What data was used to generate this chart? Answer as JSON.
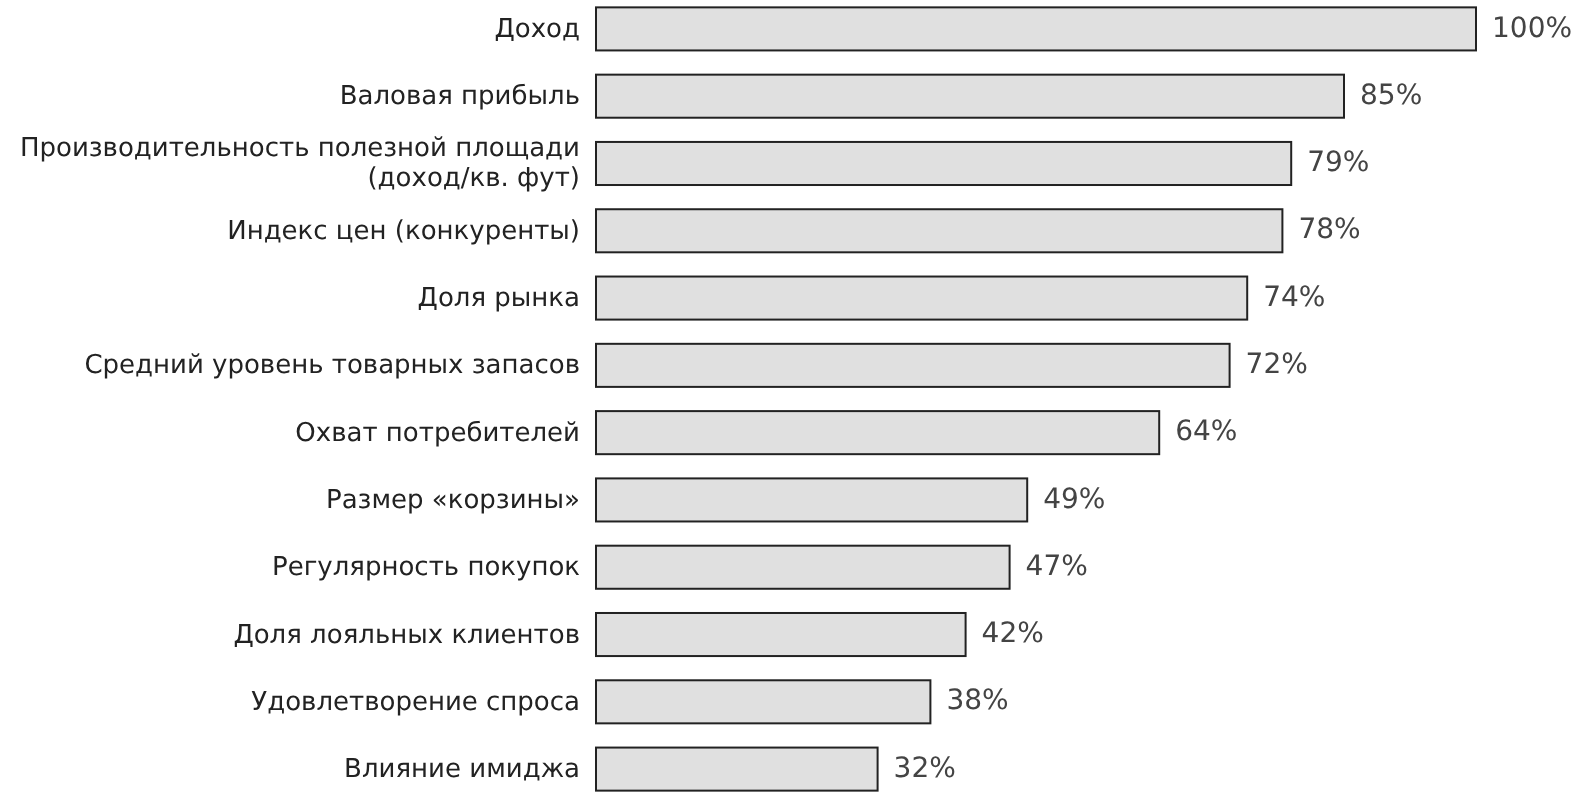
{
  "chart_data": {
    "type": "bar",
    "orientation": "horizontal",
    "data_labels": true,
    "color": "#e0e0e0",
    "categories": [
      "Доход",
      "Валовая прибыль",
      "Производительность полезной площади (доход/кв. фут)",
      "Индекс цен (конкуренты)",
      "Доля рынка",
      "Средний уровень товарных запасов",
      "Охват потребителей",
      "Размер «корзины»",
      "Регулярность покупок",
      "Доля лояльных клиентов",
      "Удовлетворение спроса",
      "Влияние имиджа"
    ],
    "values": [
      100,
      85,
      79,
      78,
      74,
      72,
      64,
      49,
      47,
      42,
      38,
      32
    ],
    "value_labels": [
      "100%",
      "85%",
      "79%",
      "78%",
      "74%",
      "72%",
      "64%",
      "49%",
      "47%",
      "42%",
      "38%",
      "32%"
    ]
  }
}
